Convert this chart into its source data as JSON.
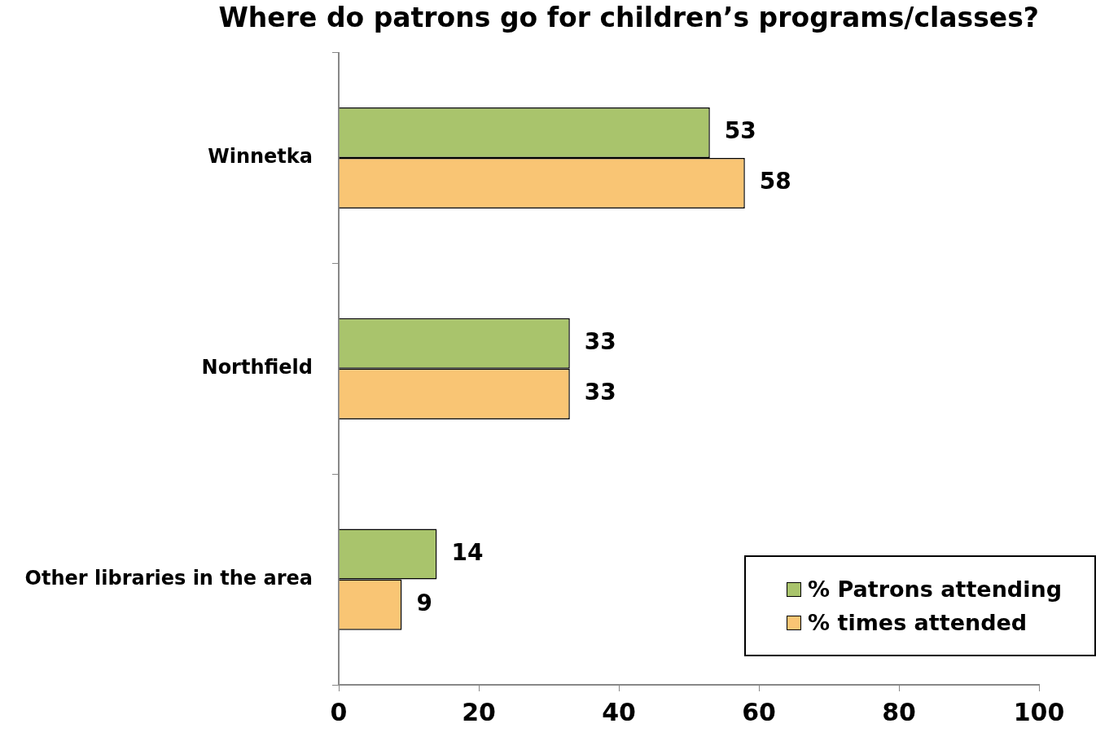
{
  "chart_data": {
    "type": "bar",
    "orientation": "horizontal",
    "title": "Where do patrons go for children’s programs/classes?",
    "categories": [
      "Winnetka",
      "Northfield",
      "Other libraries in the area"
    ],
    "series": [
      {
        "name": "% Patrons attending",
        "color": "#a9c46c",
        "values": [
          53,
          33,
          14
        ]
      },
      {
        "name": "% times attended",
        "color": "#f9c574",
        "values": [
          58,
          33,
          9
        ]
      }
    ],
    "xlim": [
      0,
      100
    ],
    "xticks": [
      0,
      20,
      40,
      60,
      80,
      100
    ],
    "grid": false,
    "legend": "bottom right",
    "data_labels": true
  }
}
